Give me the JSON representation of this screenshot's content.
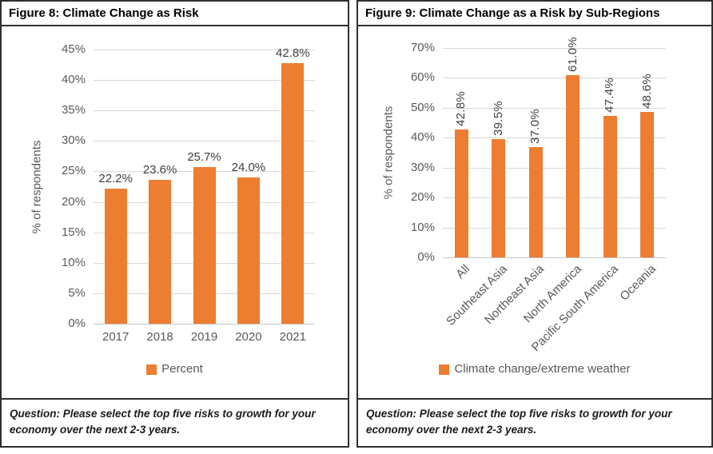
{
  "figure8": {
    "question": "Question: Please select the top five risks to growth for your economy over the next 2-3 years."
  },
  "figure9": {
    "question": "Question: Please select the top five risks to growth for your economy over the next 2-3 years."
  },
  "colors": {
    "bar": "#ED7D31",
    "gridline": "#D9D9D9",
    "axis_text": "#595959",
    "data_label": "#404040",
    "border": "#2F2F2F"
  },
  "chart_data": [
    {
      "type": "bar",
      "title": "Figure 8: Climate Change as Risk",
      "categories": [
        "2017",
        "2018",
        "2019",
        "2020",
        "2021"
      ],
      "values": [
        22.2,
        23.6,
        25.7,
        24.0,
        42.8
      ],
      "value_labels": [
        "22.2%",
        "23.6%",
        "25.7%",
        "24.0%",
        "42.8%"
      ],
      "ylabel": "% of respondents",
      "ylim": [
        0,
        45
      ],
      "ytick_step": 5,
      "ytick_values": [
        0,
        5,
        10,
        15,
        20,
        25,
        30,
        35,
        40,
        45
      ],
      "ytick_labels": [
        "0%",
        "5%",
        "10%",
        "15%",
        "20%",
        "25%",
        "30%",
        "35%",
        "40%",
        "45%"
      ],
      "legend": "Percent",
      "legend_position": "bottom",
      "grid": true
    },
    {
      "type": "bar",
      "title": "Figure 9: Climate Change as a Risk by Sub-Regions",
      "categories": [
        "All",
        "Southeast Asia",
        "Northeast Asia",
        "North America",
        "Pacific South America",
        "Oceania"
      ],
      "values": [
        42.8,
        39.5,
        37.0,
        61.0,
        47.4,
        48.6
      ],
      "value_labels": [
        "42.8%",
        "39.5%",
        "37.0%",
        "61.0%",
        "47.4%",
        "48.6%"
      ],
      "ylabel": "% of respondents",
      "ylim": [
        0,
        70
      ],
      "ytick_step": 10,
      "ytick_values": [
        0,
        10,
        20,
        30,
        40,
        50,
        60,
        70
      ],
      "ytick_labels": [
        "0%",
        "10%",
        "20%",
        "30%",
        "40%",
        "50%",
        "60%",
        "70%"
      ],
      "legend": "Climate change/extreme weather",
      "legend_position": "bottom",
      "grid": true
    }
  ]
}
